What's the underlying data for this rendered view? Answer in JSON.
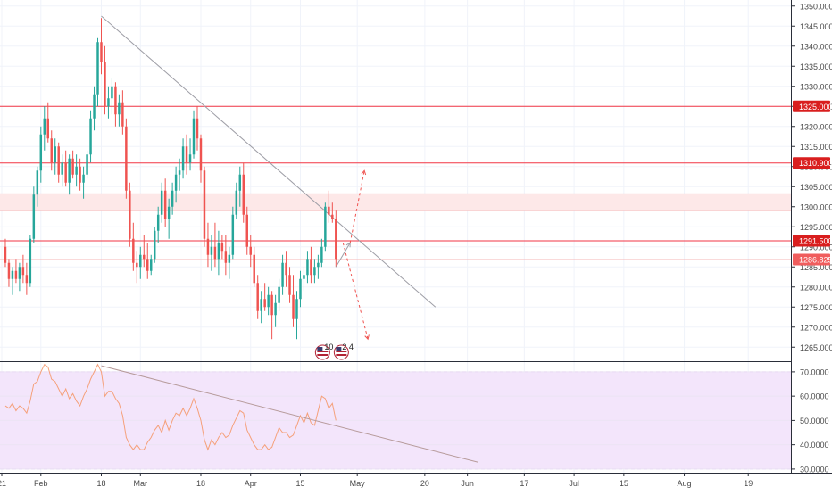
{
  "colors": {
    "up": "#26a69a",
    "down": "#ef5350",
    "hline": "#f23645",
    "trendline": "#9e9ea6",
    "rsi_line": "#f5a07a",
    "rsi_band": "#f3e5fb",
    "zone": "#fde8e8",
    "grid": "#f0f3fa",
    "axis_text": "#4a4a4a",
    "label_bg": "#d91e1e",
    "label_bg_light": "#f05d5d",
    "label_text": "#ffffff"
  },
  "chart_data": [
    {
      "type": "candlestick",
      "y_axis_ticks": [
        "1265.000",
        "1270.000",
        "1275.000",
        "1280.000",
        "1285.000",
        "1290.000",
        "1295.000",
        "1300.000",
        "1305.000",
        "1310.000",
        "1315.000",
        "1320.000",
        "1325.000",
        "1330.000",
        "1335.000",
        "1340.000",
        "1345.000",
        "1350.000"
      ],
      "ylim": [
        1261.5,
        1351.5
      ],
      "x_axis_ticks": [
        "21",
        "Feb",
        "18",
        "Mar",
        "18",
        "Apr",
        "15",
        "May",
        "20",
        "Jun",
        "17",
        "Jul",
        "15",
        "Aug",
        "19"
      ],
      "x_axis_tick_days": [
        -11,
        0,
        17,
        28,
        45,
        59,
        73,
        89,
        108,
        120,
        136,
        150,
        164,
        181,
        199
      ],
      "x_range_days": [
        -11.5,
        211
      ],
      "candles": [
        [
          -10,
          1290,
          1292,
          1285,
          1286
        ],
        [
          -9,
          1286,
          1287,
          1280,
          1282
        ],
        [
          -8,
          1282,
          1285,
          1278,
          1284
        ],
        [
          -7,
          1284,
          1287,
          1281,
          1282
        ],
        [
          -6,
          1282,
          1286,
          1279,
          1285
        ],
        [
          -5,
          1285,
          1288,
          1281,
          1283
        ],
        [
          -4,
          1283,
          1286,
          1278,
          1281
        ],
        [
          -3,
          1281,
          1293,
          1280,
          1292
        ],
        [
          -2,
          1292,
          1305,
          1291,
          1303
        ],
        [
          -1,
          1303,
          1310,
          1300,
          1309
        ],
        [
          0,
          1309,
          1320,
          1306,
          1318
        ],
        [
          1,
          1318,
          1325,
          1314,
          1322
        ],
        [
          2,
          1322,
          1326,
          1316,
          1317
        ],
        [
          3,
          1317,
          1319,
          1309,
          1311
        ],
        [
          4,
          1311,
          1317,
          1308,
          1315
        ],
        [
          5,
          1315,
          1316,
          1306,
          1308
        ],
        [
          6,
          1308,
          1313,
          1305,
          1311
        ],
        [
          7,
          1311,
          1314,
          1305,
          1306
        ],
        [
          8,
          1306,
          1313,
          1303,
          1312
        ],
        [
          9,
          1312,
          1314,
          1307,
          1308
        ],
        [
          10,
          1308,
          1313,
          1305,
          1310
        ],
        [
          11,
          1310,
          1312,
          1304,
          1306
        ],
        [
          12,
          1306,
          1310,
          1302,
          1308
        ],
        [
          13,
          1308,
          1314,
          1307,
          1313
        ],
        [
          14,
          1313,
          1324,
          1311,
          1322
        ],
        [
          15,
          1322,
          1330,
          1319,
          1328
        ],
        [
          16,
          1328,
          1342,
          1325,
          1341
        ],
        [
          17,
          1341,
          1347,
          1333,
          1336
        ],
        [
          18,
          1336,
          1340,
          1323,
          1325
        ],
        [
          19,
          1325,
          1330,
          1322,
          1327
        ],
        [
          20,
          1327,
          1332,
          1323,
          1330
        ],
        [
          21,
          1330,
          1331,
          1320,
          1323
        ],
        [
          22,
          1323,
          1328,
          1320,
          1326
        ],
        [
          23,
          1326,
          1329,
          1318,
          1320
        ],
        [
          24,
          1320,
          1322,
          1302,
          1304
        ],
        [
          25,
          1304,
          1306,
          1290,
          1292
        ],
        [
          26,
          1292,
          1296,
          1284,
          1286
        ],
        [
          27,
          1286,
          1289,
          1281,
          1285
        ],
        [
          28,
          1285,
          1290,
          1282,
          1288
        ],
        [
          29,
          1288,
          1293,
          1285,
          1287
        ],
        [
          30,
          1287,
          1291,
          1282,
          1284
        ],
        [
          31,
          1284,
          1288,
          1283,
          1287
        ],
        [
          32,
          1287,
          1295,
          1286,
          1294
        ],
        [
          33,
          1294,
          1300,
          1291,
          1298
        ],
        [
          34,
          1298,
          1306,
          1296,
          1304
        ],
        [
          35,
          1304,
          1307,
          1295,
          1297
        ],
        [
          36,
          1297,
          1302,
          1292,
          1300
        ],
        [
          37,
          1300,
          1306,
          1298,
          1304
        ],
        [
          38,
          1304,
          1310,
          1301,
          1308
        ],
        [
          39,
          1308,
          1312,
          1304,
          1309
        ],
        [
          40,
          1309,
          1317,
          1307,
          1315
        ],
        [
          41,
          1315,
          1318,
          1308,
          1311
        ],
        [
          42,
          1311,
          1317,
          1309,
          1313
        ],
        [
          43,
          1313,
          1324,
          1312,
          1322
        ],
        [
          44,
          1322,
          1325,
          1314,
          1317
        ],
        [
          45,
          1317,
          1318,
          1306,
          1309
        ],
        [
          46,
          1309,
          1310,
          1290,
          1292
        ],
        [
          47,
          1292,
          1296,
          1285,
          1288
        ],
        [
          48,
          1288,
          1293,
          1284,
          1290
        ],
        [
          49,
          1290,
          1296,
          1285,
          1287
        ],
        [
          50,
          1287,
          1294,
          1283,
          1291
        ],
        [
          51,
          1291,
          1293,
          1287,
          1289
        ],
        [
          52,
          1289,
          1293,
          1283,
          1286
        ],
        [
          53,
          1286,
          1290,
          1282,
          1288
        ],
        [
          54,
          1288,
          1300,
          1287,
          1298
        ],
        [
          55,
          1298,
          1306,
          1297,
          1304
        ],
        [
          56,
          1304,
          1310,
          1300,
          1308
        ],
        [
          57,
          1308,
          1311,
          1296,
          1298
        ],
        [
          58,
          1298,
          1300,
          1288,
          1290
        ],
        [
          59,
          1290,
          1293,
          1285,
          1288
        ],
        [
          60,
          1288,
          1290,
          1280,
          1281
        ],
        [
          61,
          1281,
          1283,
          1272,
          1274
        ],
        [
          62,
          1274,
          1279,
          1271,
          1277
        ],
        [
          63,
          1277,
          1281,
          1274,
          1275
        ],
        [
          64,
          1275,
          1280,
          1273,
          1278
        ],
        [
          65,
          1278,
          1279,
          1267,
          1273
        ],
        [
          66,
          1273,
          1278,
          1270,
          1276
        ],
        [
          67,
          1276,
          1282,
          1274,
          1280
        ],
        [
          68,
          1280,
          1288,
          1278,
          1286
        ],
        [
          69,
          1286,
          1289,
          1280,
          1283
        ],
        [
          70,
          1283,
          1285,
          1276,
          1278
        ],
        [
          71,
          1278,
          1283,
          1270,
          1272
        ],
        [
          72,
          1272,
          1279,
          1267,
          1277
        ],
        [
          73,
          1277,
          1284,
          1275,
          1282
        ],
        [
          74,
          1282,
          1285,
          1279,
          1283
        ],
        [
          75,
          1283,
          1289,
          1281,
          1287
        ],
        [
          76,
          1287,
          1290,
          1281,
          1283
        ],
        [
          77,
          1283,
          1287,
          1281,
          1285
        ],
        [
          78,
          1285,
          1288,
          1282,
          1286
        ],
        [
          79,
          1286,
          1292,
          1285,
          1290
        ],
        [
          80,
          1290,
          1301,
          1289,
          1300
        ],
        [
          81,
          1300,
          1304,
          1296,
          1298
        ],
        [
          82,
          1298,
          1301,
          1296,
          1297
        ],
        [
          83,
          1297,
          1299,
          1285,
          1287
        ]
      ],
      "horizontal_levels": [
        {
          "value": 1325.0,
          "label": "1325.000",
          "style": "solid"
        },
        {
          "value": 1310.9,
          "label": "1310.900",
          "style": "solid"
        },
        {
          "value": 1291.5,
          "label": "1291.500",
          "style": "solid"
        },
        {
          "value": 1286.825,
          "label": "1286.825",
          "style": "light"
        }
      ],
      "zones": [
        {
          "from": 1299.0,
          "to": 1303.2
        }
      ],
      "trendlines": [
        {
          "from": [
            17,
            1347.5
          ],
          "to": [
            111,
            1275.0
          ]
        }
      ],
      "projections": [
        {
          "points": [
            [
              83,
              1285
            ],
            [
              87,
              1291
            ]
          ],
          "color": "#9e9ea6"
        },
        {
          "points": [
            [
              87,
              1291
            ],
            [
              91,
              1309
            ]
          ],
          "color": "#ef5350"
        },
        {
          "points": [
            [
              85,
              1291
            ],
            [
              92,
              1267
            ]
          ],
          "color": "#ef5350"
        }
      ],
      "event_markers": [
        {
          "day": 80,
          "labels": [
            "10",
            "2",
            "4"
          ]
        }
      ]
    },
    {
      "type": "line",
      "name": "RSI",
      "y_axis_ticks": [
        "30.0000",
        "40.0000",
        "50.0000",
        "60.0000",
        "70.0000"
      ],
      "ylim": [
        28.5,
        74
      ],
      "band": [
        30,
        70
      ],
      "x": [
        -10,
        -9,
        -8,
        -7,
        -6,
        -5,
        -4,
        -3,
        -2,
        -1,
        0,
        1,
        2,
        3,
        4,
        5,
        6,
        7,
        8,
        9,
        10,
        11,
        12,
        13,
        14,
        15,
        16,
        17,
        18,
        19,
        20,
        21,
        22,
        23,
        24,
        25,
        26,
        27,
        28,
        29,
        30,
        31,
        32,
        33,
        34,
        35,
        36,
        37,
        38,
        39,
        40,
        41,
        42,
        43,
        44,
        45,
        46,
        47,
        48,
        49,
        50,
        51,
        52,
        53,
        54,
        55,
        56,
        57,
        58,
        59,
        60,
        61,
        62,
        63,
        64,
        65,
        66,
        67,
        68,
        69,
        70,
        71,
        72,
        73,
        74,
        75,
        76,
        77,
        78,
        79,
        80,
        81,
        82,
        83
      ],
      "values": [
        56,
        55,
        57,
        54,
        56,
        55,
        53,
        58,
        65,
        66,
        70,
        73,
        72,
        67,
        66,
        63,
        60,
        63,
        59,
        61,
        58,
        56,
        60,
        63,
        67,
        70,
        73,
        70,
        60,
        62,
        62,
        59,
        57,
        52,
        43,
        40,
        38,
        40,
        38,
        38,
        41,
        43,
        46,
        48,
        45,
        50,
        46,
        50,
        53,
        52,
        55,
        52,
        55,
        59,
        55,
        50,
        42,
        38,
        42,
        40,
        43,
        45,
        43,
        44,
        48,
        51,
        54,
        53,
        46,
        43,
        40,
        38,
        38,
        40,
        38,
        39,
        43,
        47,
        45,
        45,
        43,
        44,
        48,
        52,
        49,
        53,
        49,
        48,
        54,
        60,
        59,
        55,
        57,
        50
      ],
      "trendlines": [
        {
          "from": [
            17,
            72.5
          ],
          "to": [
            123,
            32.8
          ]
        }
      ]
    }
  ]
}
